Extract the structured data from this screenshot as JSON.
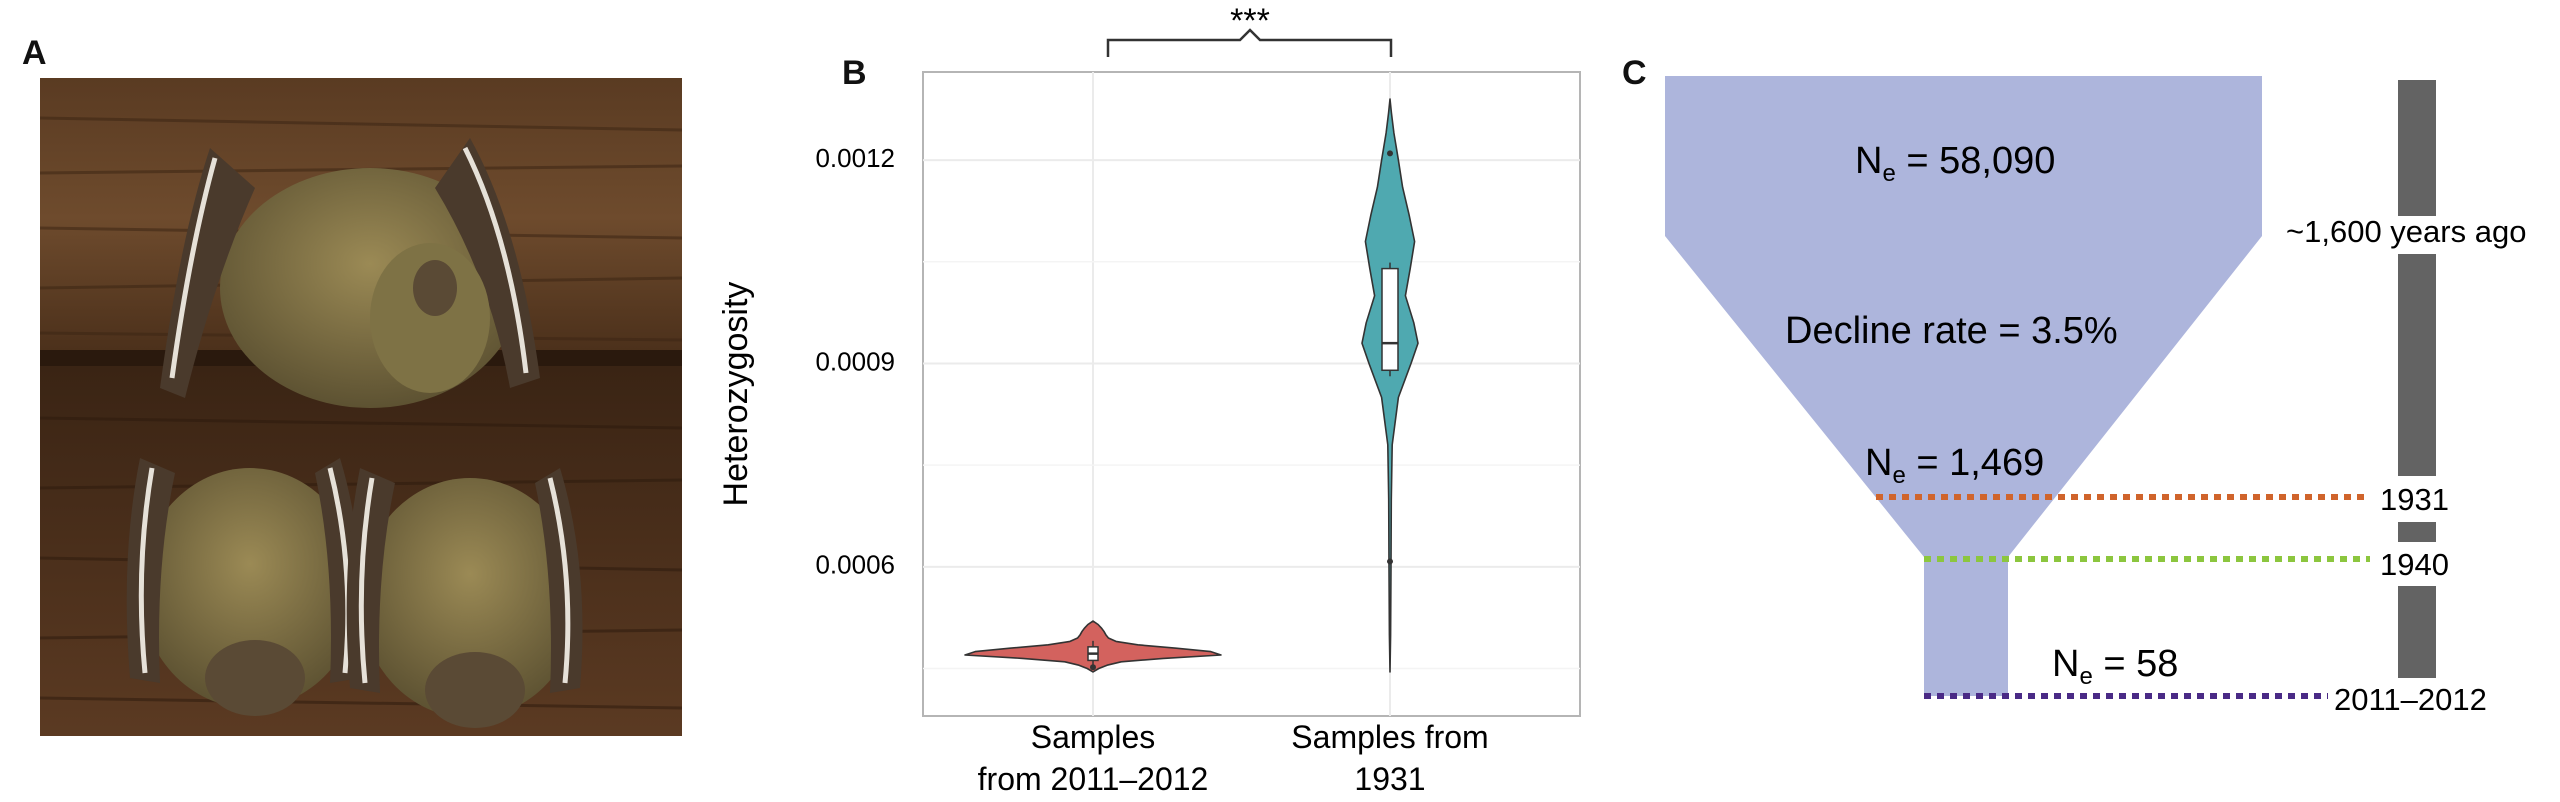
{
  "panels": {
    "a": "A",
    "b": "B",
    "c": "C"
  },
  "photo": {
    "icon": "roosting-bats-photo"
  },
  "chart_data": [
    {
      "type": "violin",
      "panel": "B",
      "ylabel": "Heterozygosity",
      "ylim": [
        0.00038,
        0.00133
      ],
      "yticks": [
        0.0006,
        0.0009,
        0.0012
      ],
      "ytick_labels": [
        "0.0006",
        "0.0009",
        "0.0012"
      ],
      "grid": true,
      "categories": [
        "Samples from 2011–2012",
        "Samples from 1931"
      ],
      "category_label_lines": [
        [
          "Samples",
          "from 2011–2012"
        ],
        [
          "Samples from",
          "1931"
        ]
      ],
      "colors": [
        "#d3625e",
        "#4fa9b0"
      ],
      "series": [
        {
          "name": "Samples from 2011–2012",
          "range": [
            0.000445,
            0.00052
          ],
          "box": {
            "q1": 0.000462,
            "median": 0.000472,
            "q3": 0.000482
          },
          "points": [
            0.000452
          ],
          "density": [
            [
              0.000445,
              0.0
            ],
            [
              0.00045,
              0.045
            ],
            [
              0.000455,
              0.11
            ],
            [
              0.00046,
              0.22
            ],
            [
              0.000465,
              0.55
            ],
            [
              0.00047,
              1.0
            ],
            [
              0.000475,
              0.92
            ],
            [
              0.00048,
              0.65
            ],
            [
              0.000485,
              0.35
            ],
            [
              0.00049,
              0.18
            ],
            [
              0.000495,
              0.12
            ],
            [
              0.0005,
              0.1
            ],
            [
              0.000505,
              0.085
            ],
            [
              0.00051,
              0.065
            ],
            [
              0.000515,
              0.04
            ],
            [
              0.00052,
              0.0
            ]
          ]
        },
        {
          "name": "Samples from 1931",
          "range": [
            0.000445,
            0.00129
          ],
          "box": {
            "q1": 0.00089,
            "median": 0.00093,
            "q3": 0.00104
          },
          "points": [
            0.000608,
            0.00121
          ],
          "density": [
            [
              0.000445,
              0.0
            ],
            [
              0.0005,
              0.02
            ],
            [
              0.0006,
              0.035
            ],
            [
              0.0007,
              0.045
            ],
            [
              0.00078,
              0.08
            ],
            [
              0.00085,
              0.3
            ],
            [
              0.0009,
              0.75
            ],
            [
              0.00093,
              1.0
            ],
            [
              0.00096,
              0.85
            ],
            [
              0.001,
              0.55
            ],
            [
              0.00104,
              0.72
            ],
            [
              0.00108,
              0.88
            ],
            [
              0.00112,
              0.68
            ],
            [
              0.00116,
              0.45
            ],
            [
              0.0012,
              0.3
            ],
            [
              0.00124,
              0.14
            ],
            [
              0.00127,
              0.05
            ],
            [
              0.00129,
              0.0
            ]
          ]
        }
      ],
      "annotation": "***"
    },
    {
      "type": "diagram",
      "panel": "C",
      "funnel": {
        "ne_ancient_prefix": "N",
        "ne_ancient_sub": "e",
        "ne_ancient_value": " = 58,090",
        "decline_text": "Decline rate = 3.5%",
        "ne_1931_prefix": "N",
        "ne_1931_sub": "e",
        "ne_1931_value": " = 1,469",
        "ne_modern_prefix": "N",
        "ne_modern_sub": "e",
        "ne_modern_value": " = 58",
        "color": "#adb5dc"
      },
      "timeline": {
        "labels": [
          "~1,600 years ago",
          "1931",
          "1940",
          "2011–2012"
        ],
        "bar_color": "#636363",
        "line_colors": [
          "#d0642b",
          "#8cc63e",
          "#4a2a86"
        ]
      }
    }
  ]
}
